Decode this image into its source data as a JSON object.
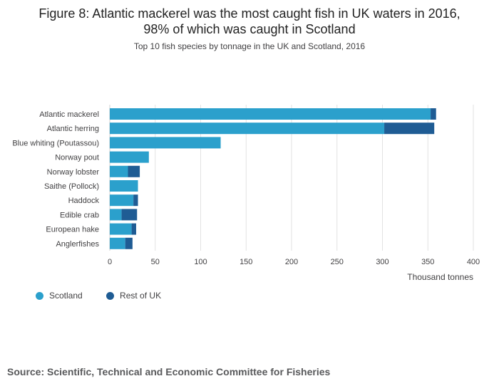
{
  "title_line1": "Figure 8: Atlantic mackerel was the most caught fish in UK waters in 2016,",
  "title_line2": "98% of which was caught in Scotland",
  "subtitle": "Top 10 fish species by tonnage in the UK and Scotland, 2016",
  "source": "Source: Scientific, Technical and Economic Committee for Fisheries",
  "colors": {
    "scotland": "#2ba0cc",
    "rest_of_uk": "#1f5c94",
    "grid": "#e2e2e2",
    "text": "#414042"
  },
  "chart_data": {
    "type": "bar",
    "orientation": "horizontal",
    "stacked": true,
    "categories": [
      "Atlantic mackerel",
      "Atlantic herring",
      "Blue whiting (Poutassou)",
      "Norway pout",
      "Norway lobster",
      "Saithe (Pollock)",
      "Haddock",
      "Edible crab",
      "European hake",
      "Anglerfishes"
    ],
    "series": [
      {
        "name": "Scotland",
        "values": [
          353,
          302,
          122,
          43,
          20,
          31,
          26,
          13,
          24,
          17
        ]
      },
      {
        "name": "Rest of UK",
        "values": [
          6,
          55,
          0,
          0,
          13,
          0,
          5,
          17,
          5,
          8
        ]
      }
    ],
    "xlabel": "Thousand tonnes",
    "xlim": [
      0,
      400
    ],
    "xticks": [
      0,
      50,
      100,
      150,
      200,
      250,
      300,
      350,
      400
    ],
    "grid": true,
    "legend": "bottom-left"
  }
}
